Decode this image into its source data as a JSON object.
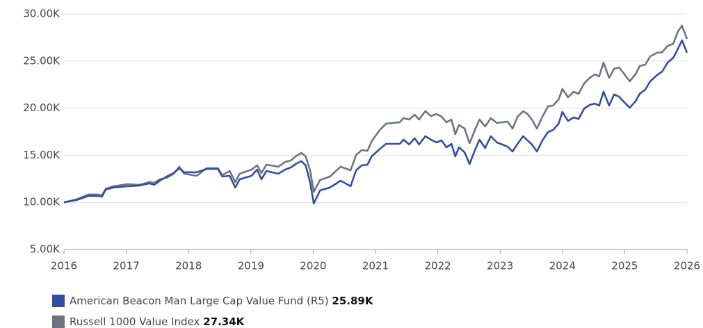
{
  "chart_data": {
    "type": "line",
    "x": [
      2016.0,
      2016.2,
      2016.39,
      2016.54,
      2016.61,
      2016.67,
      2016.79,
      2017.02,
      2017.21,
      2017.37,
      2017.45,
      2017.54,
      2017.65,
      2017.76,
      2017.85,
      2017.93,
      2018.13,
      2018.29,
      2018.47,
      2018.54,
      2018.66,
      2018.75,
      2018.82,
      2019.01,
      2019.1,
      2019.17,
      2019.25,
      2019.44,
      2019.55,
      2019.64,
      2019.72,
      2019.81,
      2019.88,
      2019.95,
      2020.01,
      2020.11,
      2020.27,
      2020.44,
      2020.6,
      2020.69,
      2020.78,
      2020.87,
      2020.94,
      2021.06,
      2021.17,
      2021.39,
      2021.45,
      2021.54,
      2021.63,
      2021.7,
      2021.8,
      2021.89,
      2021.98,
      2022.06,
      2022.14,
      2022.22,
      2022.28,
      2022.34,
      2022.43,
      2022.51,
      2022.6,
      2022.67,
      2022.76,
      2022.85,
      2022.95,
      2023.12,
      2023.2,
      2023.28,
      2023.37,
      2023.44,
      2023.51,
      2023.59,
      2023.68,
      2023.77,
      2023.85,
      2023.94,
      2024.0,
      2024.09,
      2024.18,
      2024.26,
      2024.35,
      2024.44,
      2024.52,
      2024.59,
      2024.66,
      2024.75,
      2024.83,
      2024.91,
      2024.98,
      2025.08,
      2025.18,
      2025.24,
      2025.33,
      2025.41,
      2025.52,
      2025.6,
      2025.69,
      2025.78,
      2025.85,
      2025.92,
      2026.0
    ],
    "series": [
      {
        "name": "American Beacon Man Large Cap Value Fund (R5)",
        "end_label": "25.89K",
        "color": "#2e4fa3",
        "values": [
          10.0,
          10.24,
          10.68,
          10.68,
          10.61,
          11.35,
          11.57,
          11.71,
          11.78,
          12.01,
          11.86,
          12.3,
          12.74,
          13.11,
          13.63,
          13.19,
          13.19,
          13.55,
          13.55,
          12.74,
          12.82,
          11.57,
          12.45,
          12.82,
          13.48,
          12.45,
          13.33,
          13.04,
          13.48,
          13.7,
          14.07,
          14.37,
          13.92,
          12.15,
          9.87,
          11.27,
          11.57,
          12.3,
          11.71,
          13.41,
          13.92,
          14.0,
          14.88,
          15.62,
          16.21,
          16.21,
          16.65,
          16.14,
          16.8,
          16.14,
          17.02,
          16.65,
          16.36,
          16.58,
          15.84,
          16.21,
          14.88,
          15.84,
          15.32,
          14.07,
          15.62,
          16.65,
          15.77,
          17.02,
          16.36,
          15.91,
          15.4,
          16.21,
          17.02,
          16.58,
          16.14,
          15.4,
          16.58,
          17.46,
          17.68,
          18.35,
          19.6,
          18.64,
          19.01,
          18.86,
          19.97,
          20.34,
          20.49,
          20.27,
          21.74,
          20.27,
          21.45,
          21.22,
          20.71,
          20.04,
          20.78,
          21.51,
          21.96,
          22.85,
          23.51,
          23.88,
          24.84,
          25.35,
          26.24,
          27.2,
          25.89
        ]
      },
      {
        "name": "Russell 1000 Value Index",
        "end_label": "27.34K",
        "color": "#6e747e",
        "values": [
          10.0,
          10.31,
          10.83,
          10.83,
          10.75,
          11.42,
          11.71,
          11.93,
          11.86,
          12.15,
          12.08,
          12.45,
          12.6,
          13.04,
          13.78,
          13.04,
          12.82,
          13.63,
          13.63,
          12.89,
          13.33,
          12.15,
          13.04,
          13.48,
          13.92,
          13.11,
          14.0,
          13.78,
          14.29,
          14.44,
          14.88,
          15.25,
          14.88,
          13.41,
          11.12,
          12.37,
          12.74,
          13.78,
          13.41,
          15.03,
          15.55,
          15.47,
          16.5,
          17.61,
          18.35,
          18.5,
          18.94,
          18.79,
          19.31,
          18.79,
          19.68,
          19.16,
          19.38,
          19.09,
          18.5,
          18.79,
          17.24,
          18.2,
          17.83,
          16.28,
          17.76,
          18.79,
          18.05,
          18.94,
          18.42,
          18.57,
          17.83,
          19.09,
          19.68,
          19.38,
          18.79,
          17.83,
          19.09,
          20.19,
          20.27,
          20.93,
          22.04,
          21.15,
          21.74,
          21.52,
          22.63,
          23.22,
          23.58,
          23.36,
          24.84,
          23.22,
          24.17,
          24.32,
          23.73,
          22.85,
          23.66,
          24.47,
          24.62,
          25.5,
          25.87,
          25.94,
          26.61,
          26.83,
          28.08,
          28.75,
          27.34
        ]
      }
    ],
    "xlim": [
      2016,
      2026
    ],
    "xticks": [
      2016,
      2017,
      2018,
      2019,
      2020,
      2021,
      2022,
      2023,
      2024,
      2025,
      2026
    ],
    "ylim": [
      5,
      30
    ],
    "yticks": [
      {
        "value": 5,
        "label": "5.00K"
      },
      {
        "value": 10,
        "label": "10.00K"
      },
      {
        "value": 15,
        "label": "15.00K"
      },
      {
        "value": 20,
        "label": "20.00K"
      },
      {
        "value": 25,
        "label": "25.00K"
      },
      {
        "value": 30,
        "label": "30.00K"
      }
    ],
    "grid": true
  }
}
